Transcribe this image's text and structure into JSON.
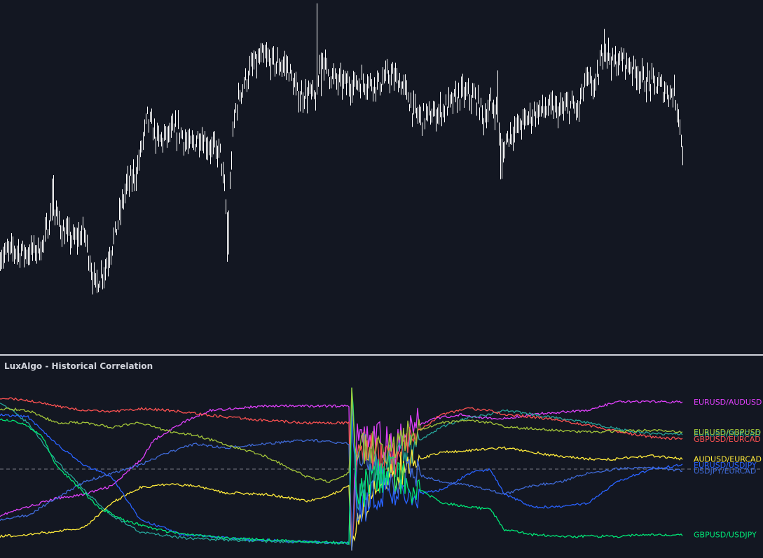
{
  "indicator": {
    "title": "LuxAlgo - Historical Correlation"
  },
  "colors": {
    "background": "#131722",
    "price_candles": "#ffffff",
    "divider": "#d1d4dc",
    "zero_line": "#787b86"
  },
  "chart_data": [
    {
      "type": "candlestick",
      "title": "",
      "note": "price pane; no axis labels visible",
      "ylim": [
        0,
        1
      ],
      "close_path": [
        [
          0,
          0.22
        ],
        [
          20,
          0.24
        ],
        [
          40,
          0.23
        ],
        [
          60,
          0.25
        ],
        [
          75,
          0.38
        ],
        [
          90,
          0.3
        ],
        [
          105,
          0.27
        ],
        [
          120,
          0.3
        ],
        [
          135,
          0.12
        ],
        [
          150,
          0.18
        ],
        [
          165,
          0.3
        ],
        [
          180,
          0.45
        ],
        [
          195,
          0.5
        ],
        [
          210,
          0.68
        ],
        [
          225,
          0.6
        ],
        [
          240,
          0.62
        ],
        [
          255,
          0.64
        ],
        [
          270,
          0.58
        ],
        [
          285,
          0.62
        ],
        [
          300,
          0.58
        ],
        [
          315,
          0.56
        ],
        [
          325,
          0.3
        ],
        [
          330,
          0.55
        ],
        [
          335,
          0.7
        ],
        [
          345,
          0.78
        ],
        [
          360,
          0.85
        ],
        [
          375,
          0.88
        ],
        [
          390,
          0.86
        ],
        [
          410,
          0.85
        ],
        [
          425,
          0.75
        ],
        [
          440,
          0.76
        ],
        [
          452,
          0.74
        ],
        [
          458,
          0.9
        ],
        [
          465,
          0.84
        ],
        [
          480,
          0.8
        ],
        [
          500,
          0.79
        ],
        [
          520,
          0.8
        ],
        [
          540,
          0.79
        ],
        [
          555,
          0.82
        ],
        [
          570,
          0.8
        ],
        [
          580,
          0.76
        ],
        [
          590,
          0.7
        ],
        [
          600,
          0.68
        ],
        [
          620,
          0.69
        ],
        [
          640,
          0.72
        ],
        [
          660,
          0.76
        ],
        [
          680,
          0.74
        ],
        [
          690,
          0.68
        ],
        [
          700,
          0.72
        ],
        [
          710,
          0.7
        ],
        [
          715,
          0.55
        ],
        [
          725,
          0.62
        ],
        [
          745,
          0.66
        ],
        [
          765,
          0.7
        ],
        [
          785,
          0.71
        ],
        [
          800,
          0.7
        ],
        [
          815,
          0.72
        ],
        [
          825,
          0.7
        ],
        [
          835,
          0.8
        ],
        [
          850,
          0.78
        ],
        [
          862,
          0.92
        ],
        [
          875,
          0.86
        ],
        [
          890,
          0.87
        ],
        [
          905,
          0.84
        ],
        [
          920,
          0.8
        ],
        [
          935,
          0.79
        ],
        [
          950,
          0.77
        ],
        [
          962,
          0.76
        ],
        [
          968,
          0.7
        ],
        [
          975,
          0.55
        ]
      ]
    },
    {
      "type": "line",
      "title": "LuxAlgo - Historical Correlation",
      "ylim": [
        -1,
        1
      ],
      "zero_line": true,
      "series": [
        {
          "name": "EURUSD/AUDUSD",
          "color": "#e040fb",
          "label_value": 0.8,
          "points": [
            [
              0,
              -0.55
            ],
            [
              40,
              -0.45
            ],
            [
              80,
              -0.35
            ],
            [
              120,
              -0.3
            ],
            [
              160,
              -0.2
            ],
            [
              200,
              0.1
            ],
            [
              220,
              0.35
            ],
            [
              260,
              0.55
            ],
            [
              300,
              0.7
            ],
            [
              380,
              0.75
            ],
            [
              460,
              0.75
            ],
            [
              498,
              0.75
            ],
            [
              502,
              -0.9
            ],
            [
              510,
              0.45
            ],
            [
              530,
              0.4
            ],
            [
              560,
              0.25
            ],
            [
              590,
              0.5
            ],
            [
              620,
              0.6
            ],
            [
              660,
              0.65
            ],
            [
              700,
              0.6
            ],
            [
              720,
              0.6
            ],
            [
              760,
              0.65
            ],
            [
              800,
              0.68
            ],
            [
              840,
              0.7
            ],
            [
              880,
              0.8
            ],
            [
              930,
              0.8
            ],
            [
              975,
              0.8
            ]
          ]
        },
        {
          "name": "EURUSD/EURCAD",
          "color": "#26a69a",
          "label_value": 0.42,
          "points": [
            [
              0,
              0.8
            ],
            [
              40,
              0.55
            ],
            [
              80,
              0.1
            ],
            [
              120,
              -0.25
            ],
            [
              160,
              -0.55
            ],
            [
              200,
              -0.75
            ],
            [
              260,
              -0.82
            ],
            [
              340,
              -0.85
            ],
            [
              420,
              -0.87
            ],
            [
              498,
              -0.88
            ],
            [
              502,
              0.9
            ],
            [
              510,
              -0.4
            ],
            [
              530,
              -0.1
            ],
            [
              560,
              0.1
            ],
            [
              590,
              0.3
            ],
            [
              630,
              0.5
            ],
            [
              670,
              0.62
            ],
            [
              700,
              0.65
            ],
            [
              720,
              0.7
            ],
            [
              760,
              0.65
            ],
            [
              800,
              0.6
            ],
            [
              840,
              0.55
            ],
            [
              880,
              0.48
            ],
            [
              930,
              0.42
            ],
            [
              975,
              0.42
            ]
          ]
        },
        {
          "name": "GBPUSD/EURCAD",
          "color": "#ff5252",
          "label_value": 0.36,
          "points": [
            [
              0,
              0.85
            ],
            [
              40,
              0.82
            ],
            [
              80,
              0.75
            ],
            [
              120,
              0.7
            ],
            [
              160,
              0.68
            ],
            [
              200,
              0.72
            ],
            [
              240,
              0.7
            ],
            [
              280,
              0.66
            ],
            [
              320,
              0.62
            ],
            [
              380,
              0.58
            ],
            [
              440,
              0.55
            ],
            [
              498,
              0.55
            ],
            [
              502,
              -0.9
            ],
            [
              510,
              0.4
            ],
            [
              530,
              0.2
            ],
            [
              560,
              0.1
            ],
            [
              590,
              0.4
            ],
            [
              630,
              0.65
            ],
            [
              670,
              0.72
            ],
            [
              700,
              0.7
            ],
            [
              720,
              0.65
            ],
            [
              760,
              0.62
            ],
            [
              800,
              0.58
            ],
            [
              840,
              0.52
            ],
            [
              880,
              0.45
            ],
            [
              930,
              0.38
            ],
            [
              975,
              0.36
            ]
          ]
        },
        {
          "name": "AUDUSD/EURCAD",
          "color": "#ffeb3b",
          "label_value": 0.12,
          "points": [
            [
              0,
              -0.8
            ],
            [
              40,
              -0.78
            ],
            [
              80,
              -0.74
            ],
            [
              120,
              -0.7
            ],
            [
              160,
              -0.4
            ],
            [
              200,
              -0.22
            ],
            [
              240,
              -0.18
            ],
            [
              280,
              -0.2
            ],
            [
              320,
              -0.28
            ],
            [
              380,
              -0.3
            ],
            [
              440,
              -0.38
            ],
            [
              470,
              -0.32
            ],
            [
              498,
              -0.2
            ],
            [
              502,
              -0.9
            ],
            [
              510,
              -0.6
            ],
            [
              530,
              -0.3
            ],
            [
              560,
              -0.1
            ],
            [
              590,
              0.1
            ],
            [
              630,
              0.2
            ],
            [
              670,
              0.22
            ],
            [
              700,
              0.24
            ],
            [
              720,
              0.25
            ],
            [
              760,
              0.2
            ],
            [
              800,
              0.15
            ],
            [
              840,
              0.12
            ],
            [
              880,
              0.12
            ],
            [
              930,
              0.16
            ],
            [
              975,
              0.12
            ]
          ]
        },
        {
          "name": "EURUSD/USDJPY",
          "color": "#2962ff",
          "label_value": 0.05,
          "points": [
            [
              0,
              0.65
            ],
            [
              40,
              0.62
            ],
            [
              80,
              0.3
            ],
            [
              120,
              0.05
            ],
            [
              160,
              -0.1
            ],
            [
              200,
              -0.6
            ],
            [
              260,
              -0.78
            ],
            [
              340,
              -0.83
            ],
            [
              420,
              -0.86
            ],
            [
              498,
              -0.88
            ],
            [
              502,
              0.9
            ],
            [
              510,
              -0.55
            ],
            [
              530,
              -0.3
            ],
            [
              560,
              -0.2
            ],
            [
              590,
              -0.3
            ],
            [
              630,
              -0.25
            ],
            [
              670,
              -0.05
            ],
            [
              700,
              0.0
            ],
            [
              720,
              -0.3
            ],
            [
              760,
              -0.45
            ],
            [
              800,
              -0.45
            ],
            [
              840,
              -0.4
            ],
            [
              880,
              -0.15
            ],
            [
              930,
              0.0
            ],
            [
              975,
              0.05
            ]
          ]
        },
        {
          "name": "USDJPY/EURCAD",
          "color": "#3f6ad8",
          "label_value": -0.02,
          "points": [
            [
              0,
              -0.6
            ],
            [
              40,
              -0.55
            ],
            [
              80,
              -0.35
            ],
            [
              120,
              -0.15
            ],
            [
              160,
              -0.05
            ],
            [
              200,
              0.05
            ],
            [
              240,
              0.2
            ],
            [
              280,
              0.3
            ],
            [
              320,
              0.25
            ],
            [
              380,
              0.3
            ],
            [
              440,
              0.35
            ],
            [
              498,
              0.3
            ],
            [
              502,
              -0.9
            ],
            [
              510,
              0.3
            ],
            [
              530,
              0.1
            ],
            [
              560,
              -0.1
            ],
            [
              590,
              -0.05
            ],
            [
              630,
              -0.15
            ],
            [
              670,
              -0.2
            ],
            [
              700,
              -0.25
            ],
            [
              720,
              -0.3
            ],
            [
              760,
              -0.2
            ],
            [
              800,
              -0.15
            ],
            [
              840,
              -0.05
            ],
            [
              880,
              0.0
            ],
            [
              930,
              0.02
            ],
            [
              975,
              -0.02
            ]
          ]
        },
        {
          "name": "GBPUSD/USDJPY",
          "color": "#00e676",
          "label_value": -0.78,
          "points": [
            [
              0,
              0.6
            ],
            [
              30,
              0.55
            ],
            [
              60,
              0.4
            ],
            [
              80,
              0.05
            ],
            [
              110,
              -0.2
            ],
            [
              140,
              -0.45
            ],
            [
              180,
              -0.62
            ],
            [
              240,
              -0.75
            ],
            [
              320,
              -0.82
            ],
            [
              400,
              -0.85
            ],
            [
              460,
              -0.87
            ],
            [
              498,
              -0.88
            ],
            [
              502,
              0.9
            ],
            [
              510,
              -0.4
            ],
            [
              530,
              -0.1
            ],
            [
              560,
              -0.05
            ],
            [
              590,
              -0.2
            ],
            [
              630,
              -0.4
            ],
            [
              670,
              -0.45
            ],
            [
              700,
              -0.48
            ],
            [
              720,
              -0.72
            ],
            [
              760,
              -0.78
            ],
            [
              800,
              -0.8
            ],
            [
              840,
              -0.8
            ],
            [
              880,
              -0.8
            ],
            [
              930,
              -0.78
            ],
            [
              975,
              -0.78
            ]
          ]
        },
        {
          "name": "EURUSD/GBPUSD",
          "color": "#a4c639",
          "label_value": 0.44,
          "points": [
            [
              0,
              0.72
            ],
            [
              40,
              0.7
            ],
            [
              80,
              0.55
            ],
            [
              120,
              0.55
            ],
            [
              160,
              0.5
            ],
            [
              200,
              0.55
            ],
            [
              240,
              0.45
            ],
            [
              280,
              0.4
            ],
            [
              320,
              0.3
            ],
            [
              380,
              0.15
            ],
            [
              440,
              -0.1
            ],
            [
              470,
              -0.15
            ],
            [
              498,
              -0.05
            ],
            [
              502,
              0.85
            ],
            [
              510,
              0.2
            ],
            [
              530,
              0.25
            ],
            [
              560,
              0.3
            ],
            [
              590,
              0.45
            ],
            [
              630,
              0.55
            ],
            [
              670,
              0.58
            ],
            [
              700,
              0.55
            ],
            [
              720,
              0.5
            ],
            [
              760,
              0.48
            ],
            [
              800,
              0.46
            ],
            [
              840,
              0.44
            ],
            [
              880,
              0.45
            ],
            [
              930,
              0.46
            ],
            [
              975,
              0.44
            ]
          ]
        }
      ]
    }
  ]
}
